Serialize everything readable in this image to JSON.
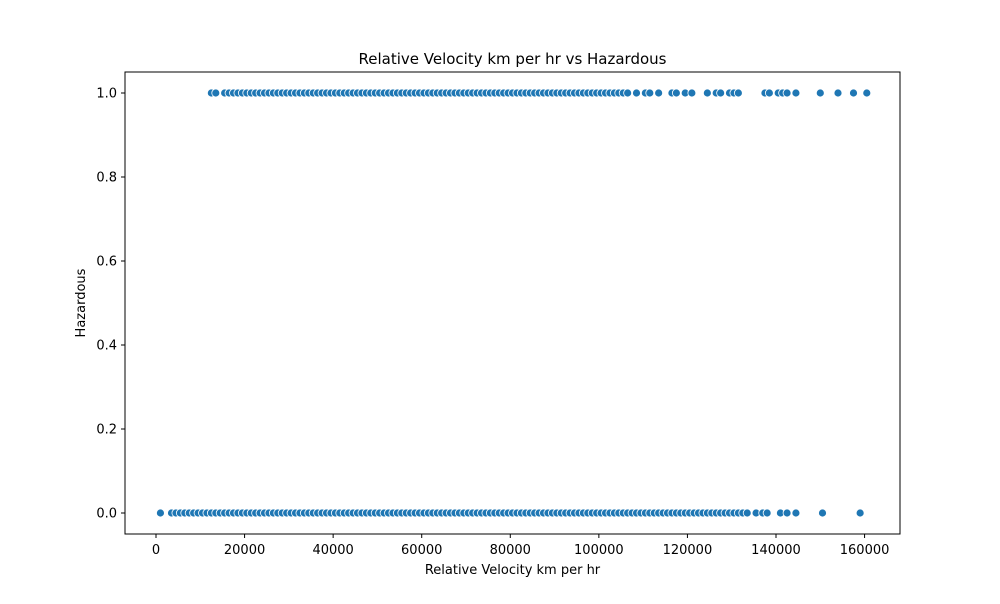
{
  "chart_data": {
    "type": "scatter",
    "title": "Relative Velocity km per hr vs Hazardous",
    "xlabel": "Relative Velocity km per hr",
    "ylabel": "Hazardous",
    "xlim": [
      -7000,
      168000
    ],
    "ylim": [
      -0.05,
      1.05
    ],
    "xticks": [
      0,
      20000,
      40000,
      60000,
      80000,
      100000,
      120000,
      140000,
      160000
    ],
    "xtick_labels": [
      "0",
      "20000",
      "40000",
      "60000",
      "80000",
      "100000",
      "120000",
      "140000",
      "160000"
    ],
    "yticks": [
      0.0,
      0.2,
      0.4,
      0.6,
      0.8,
      1.0
    ],
    "ytick_labels": [
      "0.0",
      "0.2",
      "0.4",
      "0.6",
      "0.8",
      "1.0"
    ],
    "grid": false,
    "marker_color": "#1f77b4",
    "series": [
      {
        "values_y": 0.0,
        "x": [
          1000,
          3500,
          4500,
          5500,
          6500,
          7500,
          8500,
          9500,
          10500,
          11500,
          12500,
          13500,
          14500,
          15500,
          16500,
          17500,
          18500,
          19500,
          20500,
          21500,
          22500,
          23500,
          24500,
          25500,
          26500,
          27500,
          28500,
          29500,
          30500,
          31500,
          32500,
          33500,
          34500,
          35500,
          36500,
          37500,
          38500,
          39500,
          40500,
          41500,
          42500,
          43500,
          44500,
          45500,
          46500,
          47500,
          48500,
          49500,
          50500,
          51500,
          52500,
          53500,
          54500,
          55500,
          56500,
          57500,
          58500,
          59500,
          60500,
          61500,
          62500,
          63500,
          64500,
          65500,
          66500,
          67500,
          68500,
          69500,
          70500,
          71500,
          72500,
          73500,
          74500,
          75500,
          76500,
          77500,
          78500,
          79500,
          80500,
          81500,
          82500,
          83500,
          84500,
          85500,
          86500,
          87500,
          88500,
          89500,
          90500,
          91500,
          92500,
          93500,
          94500,
          95500,
          96500,
          97500,
          98500,
          99500,
          100500,
          101500,
          102500,
          103500,
          104500,
          105500,
          106500,
          107500,
          108500,
          109500,
          110500,
          111500,
          112500,
          113500,
          114500,
          115500,
          116500,
          117500,
          118500,
          119500,
          120500,
          121500,
          122500,
          123500,
          124500,
          125500,
          126500,
          127500,
          128500,
          129500,
          130500,
          131500,
          132500,
          133500,
          135500,
          137000,
          138000,
          141000,
          142500,
          144500,
          150500,
          159000
        ]
      },
      {
        "values_y": 1.0,
        "x": [
          12500,
          13500,
          15500,
          16500,
          17500,
          18500,
          19500,
          20500,
          21500,
          22500,
          23500,
          24500,
          25500,
          26500,
          27500,
          28500,
          29500,
          30500,
          31500,
          32500,
          33500,
          34500,
          35500,
          36500,
          37500,
          38500,
          39500,
          40500,
          41500,
          42500,
          43500,
          44500,
          45500,
          46500,
          47500,
          48500,
          49500,
          50500,
          51500,
          52500,
          53500,
          54500,
          55500,
          56500,
          57500,
          58500,
          59500,
          60500,
          61500,
          62500,
          63500,
          64500,
          65500,
          66500,
          67500,
          68500,
          69500,
          70500,
          71500,
          72500,
          73500,
          74500,
          75500,
          76500,
          77500,
          78500,
          79500,
          80500,
          81500,
          82500,
          83500,
          84500,
          85500,
          86500,
          87500,
          88500,
          89500,
          90500,
          91500,
          92500,
          93500,
          94500,
          95500,
          96500,
          97500,
          98500,
          99500,
          100500,
          101500,
          102500,
          103500,
          104500,
          105500,
          106500,
          108500,
          110500,
          111500,
          113500,
          116500,
          117500,
          119500,
          121000,
          124500,
          126500,
          127500,
          129500,
          130500,
          131500,
          137500,
          138500,
          140500,
          141500,
          142500,
          144500,
          150000,
          154000,
          157500,
          160500
        ]
      }
    ]
  }
}
